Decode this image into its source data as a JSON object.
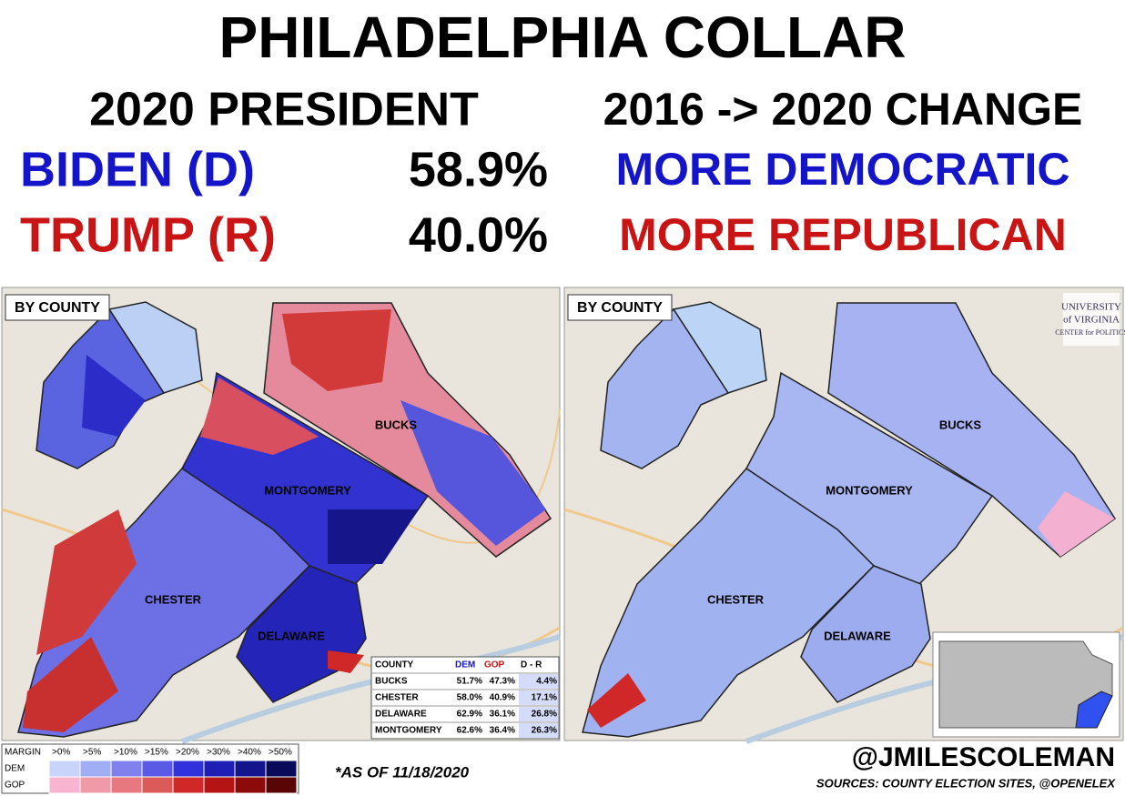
{
  "header": {
    "title": "PHILADELPHIA COLLAR",
    "left_heading": "2020 PRESIDENT",
    "right_heading": "2016 -> 2020 CHANGE"
  },
  "candidates": [
    {
      "name": "BIDEN (D)",
      "share": "58.9%",
      "change": "MORE DEMOCRATIC"
    },
    {
      "name": "TRUMP (R)",
      "share": "40.0%",
      "change": "MORE REPUBLICAN"
    }
  ],
  "maps": [
    {
      "label": "BY COUNTY",
      "counties": [
        "BUCKS",
        "MONTGOMERY",
        "CHESTER",
        "DELAWARE"
      ]
    },
    {
      "label": "BY COUNTY",
      "counties": [
        "BUCKS",
        "MONTGOMERY",
        "CHESTER",
        "DELAWARE"
      ]
    }
  ],
  "logo": [
    "UNIVERSITY",
    "of VIRGINIA",
    "CENTER for POLITICS"
  ],
  "results_table": {
    "header": [
      "COUNTY",
      "DEM",
      "GOP",
      "D - R"
    ],
    "rows": [
      [
        "BUCKS",
        "51.7%",
        "47.3%",
        "4.4%"
      ],
      [
        "CHESTER",
        "58.0%",
        "40.9%",
        "17.1%"
      ],
      [
        "DELAWARE",
        "62.9%",
        "36.1%",
        "26.8%"
      ],
      [
        "MONTGOMERY",
        "62.6%",
        "36.4%",
        "26.3%"
      ]
    ]
  },
  "legend": {
    "header": "MARGIN",
    "thresholds": [
      ">0%",
      ">5%",
      ">10%",
      ">15%",
      ">20%",
      ">30%",
      ">40%",
      ">50%"
    ],
    "rows": [
      "DEM",
      "GOP"
    ]
  },
  "footnote": "*AS OF 11/18/2020",
  "credit": "@JMILESCOLEMAN",
  "sources": "SOURCES: COUNTY ELECTION SITES, @OPENELEX"
}
